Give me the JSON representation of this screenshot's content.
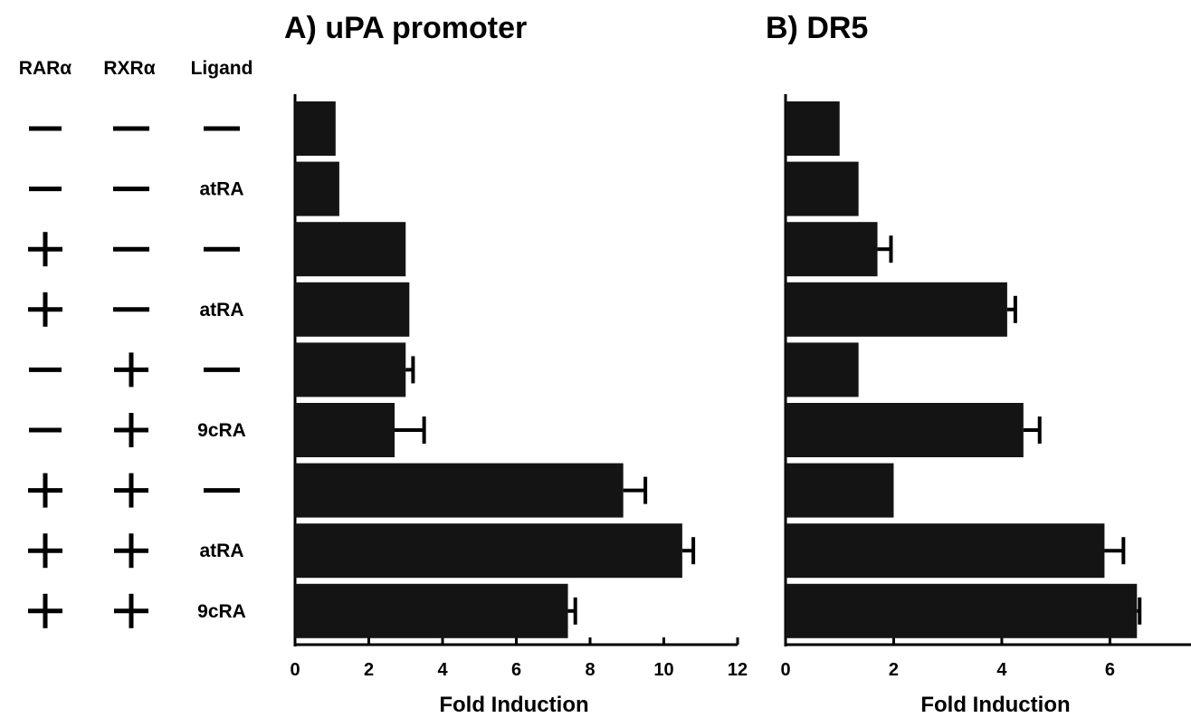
{
  "row_headers": {
    "rar": "RARα",
    "rxr": "RXRα",
    "ligand": "Ligand"
  },
  "rows": [
    {
      "rar": "-",
      "rxr": "-",
      "ligand": "-"
    },
    {
      "rar": "-",
      "rxr": "-",
      "ligand": "atRA"
    },
    {
      "rar": "+",
      "rxr": "-",
      "ligand": "-"
    },
    {
      "rar": "+",
      "rxr": "-",
      "ligand": "atRA"
    },
    {
      "rar": "-",
      "rxr": "+",
      "ligand": "-"
    },
    {
      "rar": "-",
      "rxr": "+",
      "ligand": "9cRA"
    },
    {
      "rar": "+",
      "rxr": "+",
      "ligand": "-"
    },
    {
      "rar": "+",
      "rxr": "+",
      "ligand": "atRA"
    },
    {
      "rar": "+",
      "rxr": "+",
      "ligand": "9cRA"
    }
  ],
  "chart_data": [
    {
      "type": "bar",
      "orientation": "horizontal",
      "title": "A) uPA promoter",
      "xlabel": "Fold Induction",
      "xlim": [
        0,
        12
      ],
      "xticks": [
        0,
        2,
        4,
        6,
        8,
        10,
        12
      ],
      "values": [
        1.1,
        1.2,
        3.0,
        3.1,
        3.0,
        2.7,
        8.9,
        10.5,
        7.4
      ],
      "errors": [
        0,
        0,
        0,
        0,
        0.2,
        0.8,
        0.6,
        0.3,
        0.2
      ]
    },
    {
      "type": "bar",
      "orientation": "horizontal",
      "title": "B) DR5",
      "xlabel": "Fold Induction",
      "xlim": [
        0,
        7.5
      ],
      "xticks": [
        0,
        2,
        4,
        6
      ],
      "values": [
        1.0,
        1.35,
        1.7,
        4.1,
        1.35,
        4.4,
        2.0,
        5.9,
        6.5
      ],
      "errors": [
        0,
        0,
        0.25,
        0.15,
        0,
        0.3,
        0,
        0.35,
        0.05
      ]
    }
  ]
}
